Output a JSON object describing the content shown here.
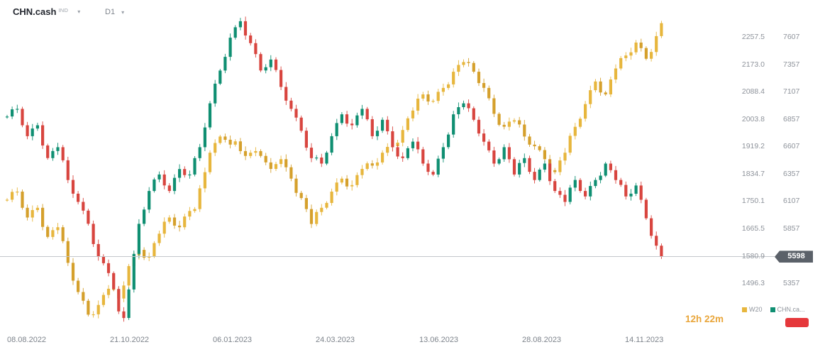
{
  "header": {
    "instrument": "CHN.cash",
    "instrument_type": "IND",
    "timeframe": "D1"
  },
  "icons": {
    "chevron_down": "▾"
  },
  "chart_data": {
    "type": "candlestick",
    "title": "CHN.cash D1 candlestick chart with W20 overlay",
    "grid": false,
    "x_axis": {
      "labels": [
        "08.08.2022",
        "21.10.2022",
        "06.01.2023",
        "24.03.2023",
        "13.06.2023",
        "28.08.2023",
        "14.11.2023"
      ]
    },
    "left_axis": {
      "instrument": "W20",
      "ticks": [
        "2257.5",
        "2173.0",
        "2088.4",
        "2003.8",
        "1919.2",
        "1834.7",
        "1750.1",
        "1665.5",
        "1580.9",
        "1496.3"
      ]
    },
    "right_axis": {
      "instrument": "CHN.cash",
      "ticks": [
        "7607",
        "7357",
        "7107",
        "6857",
        "6607",
        "6357",
        "6107",
        "5857",
        "5357"
      ]
    },
    "current_price": {
      "value": "5598",
      "badge_color": "#5b6169"
    },
    "series": [
      {
        "name": "W20",
        "axis": "left",
        "color_up": "#e7b63d",
        "color_down": "#d5a02c",
        "closes": [
          1755,
          1779,
          1780,
          1730,
          1700,
          1723,
          1730,
          1671,
          1640,
          1661,
          1670,
          1627,
          1560,
          1505,
          1470,
          1443,
          1400,
          1401,
          1430,
          1461,
          1480,
          1477,
          1450,
          1490,
          1550,
          1583,
          1600,
          1576,
          1580,
          1621,
          1650,
          1687,
          1700,
          1675,
          1670,
          1703,
          1720,
          1726,
          1790,
          1840,
          1900,
          1930,
          1950,
          1940,
          1925,
          1935,
          1905,
          1890,
          1900,
          1905,
          1890,
          1870,
          1850,
          1865,
          1880,
          1855,
          1820,
          1776,
          1760,
          1726,
          1680,
          1717,
          1730,
          1745,
          1780,
          1808,
          1820,
          1796,
          1800,
          1831,
          1850,
          1867,
          1860,
          1870,
          1900,
          1918,
          1920,
          1931,
          1970,
          2006,
          2030,
          2067,
          2080,
          2058,
          2060,
          2088,
          2100,
          2111,
          2150,
          2171,
          2180,
          2177,
          2150,
          2115,
          2100,
          2068,
          2020,
          1986,
          1980,
          1996,
          2000,
          1987,
          1950,
          1925,
          1920,
          1908,
          1880,
          1846,
          1840,
          1876,
          1900,
          1952,
          1980,
          2005,
          2050,
          2093,
          2120,
          2086,
          2080,
          2126,
          2160,
          2192,
          2200,
          2210,
          2240,
          2223,
          2190,
          2211,
          2260,
          2300
        ]
      },
      {
        "name": "CHN.cash",
        "axis": "right",
        "color_up": "#0f8f72",
        "color_down": "#d8453f",
        "closes": [
          6880,
          6945,
          6950,
          6800,
          6700,
          6770,
          6800,
          6615,
          6500,
          6565,
          6600,
          6480,
          6300,
          6175,
          6100,
          6020,
          5900,
          5715,
          5600,
          5540,
          5450,
          5305,
          5100,
          5040,
          5300,
          5625,
          5900,
          6030,
          6200,
          6305,
          6350,
          6250,
          6200,
          6320,
          6400,
          6345,
          6350,
          6500,
          6600,
          6780,
          7000,
          7180,
          7300,
          7425,
          7600,
          7695,
          7750,
          7620,
          7550,
          7450,
          7300,
          7330,
          7400,
          7305,
          7150,
          7025,
          6950,
          6870,
          6750,
          6595,
          6500,
          6505,
          6450,
          6550,
          6700,
          6820,
          6900,
          6815,
          6800,
          6890,
          6950,
          6855,
          6700,
          6750,
          6850,
          6745,
          6600,
          6515,
          6500,
          6590,
          6650,
          6580,
          6450,
          6375,
          6350,
          6495,
          6600,
          6715,
          6900,
          6965,
          7000,
          6955,
          6850,
          6725,
          6650,
          6570,
          6450,
          6490,
          6600,
          6490,
          6350,
          6455,
          6500,
          6375,
          6300,
          6395,
          6450,
          6290,
          6200,
          6165,
          6100,
          6230,
          6300,
          6200,
          6150,
          6245,
          6300,
          6340,
          6450,
          6390,
          6300,
          6255,
          6150,
          6175,
          6250,
          6120,
          5950,
          5790,
          5700,
          5598
        ]
      }
    ]
  },
  "footer": {
    "countdown": "12h 22m",
    "legend": [
      {
        "label": "W20",
        "color": "#e7b63d"
      },
      {
        "label": "CHN.ca...",
        "color": "#0f8f72"
      }
    ],
    "price_tag_color": "#e5383b"
  }
}
